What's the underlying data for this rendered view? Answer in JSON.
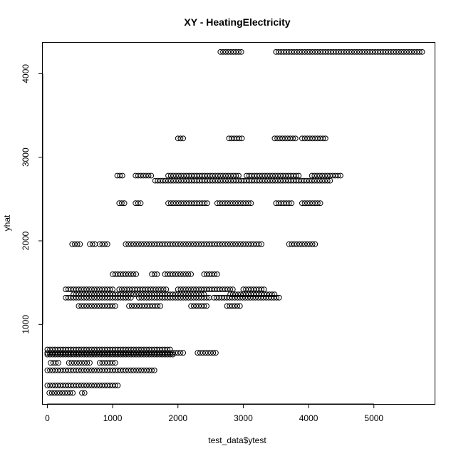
{
  "chart_data": {
    "type": "scatter",
    "title": "XY - HeatingElectricity",
    "xlabel": "test_data$ytest",
    "ylabel": "yhat",
    "xlim": [
      -70,
      5930
    ],
    "ylim": [
      48,
      4370
    ],
    "x_ticks": [
      0,
      1000,
      2000,
      3000,
      4000,
      5000
    ],
    "x_tick_labels": [
      "0",
      "1000",
      "2000",
      "3000",
      "4000",
      "5000"
    ],
    "y_ticks": [
      1000,
      2000,
      3000,
      4000
    ],
    "y_tick_labels": [
      "1000",
      "2000",
      "3000",
      "4000"
    ],
    "marker": "open-circle",
    "grid": false,
    "legend": "none",
    "colors": {
      "points": "#000000",
      "background": "#ffffff"
    },
    "bands": [
      {
        "y": 4260,
        "segments": [
          [
            2650,
            3000
          ],
          [
            3500,
            5750
          ]
        ]
      },
      {
        "y": 3225,
        "segments": [
          [
            2000,
            2100
          ],
          [
            2780,
            2980
          ],
          [
            3480,
            3820
          ],
          [
            3900,
            4280
          ]
        ]
      },
      {
        "y": 2780,
        "segments": [
          [
            1070,
            1150
          ],
          [
            1350,
            1600
          ],
          [
            1850,
            2950
          ],
          [
            3050,
            3850
          ],
          [
            4050,
            4500
          ]
        ]
      },
      {
        "y": 2720,
        "segments": [
          [
            1650,
            4350
          ]
        ]
      },
      {
        "y": 2450,
        "segments": [
          [
            1100,
            1180
          ],
          [
            1350,
            1450
          ],
          [
            1850,
            2450
          ],
          [
            2600,
            3150
          ],
          [
            3500,
            3750
          ],
          [
            3900,
            4180
          ]
        ]
      },
      {
        "y": 1960,
        "segments": [
          [
            380,
            520
          ],
          [
            650,
            750
          ],
          [
            800,
            950
          ],
          [
            1200,
            3300
          ],
          [
            3700,
            4120
          ]
        ]
      },
      {
        "y": 1600,
        "segments": [
          [
            1000,
            1380
          ],
          [
            1600,
            1700
          ],
          [
            1800,
            2200
          ],
          [
            2400,
            2600
          ]
        ]
      },
      {
        "y": 1420,
        "segments": [
          [
            280,
            1000
          ],
          [
            1100,
            1850
          ],
          [
            2000,
            2850
          ],
          [
            3000,
            3350
          ]
        ]
      },
      {
        "y": 1360,
        "segments": [
          [
            400,
            1200
          ],
          [
            1200,
            2400
          ],
          [
            2800,
            3500
          ]
        ]
      },
      {
        "y": 1320,
        "segments": [
          [
            280,
            1300
          ],
          [
            1400,
            2500
          ],
          [
            2550,
            3550
          ]
        ]
      },
      {
        "y": 1220,
        "segments": [
          [
            480,
            1050
          ],
          [
            1250,
            1750
          ],
          [
            2200,
            2450
          ],
          [
            2750,
            2950
          ]
        ]
      },
      {
        "y": 700,
        "segments": [
          [
            0,
            1900
          ]
        ]
      },
      {
        "y": 660,
        "segments": [
          [
            0,
            2100
          ],
          [
            2300,
            2600
          ]
        ]
      },
      {
        "y": 640,
        "segments": [
          [
            0,
            1950
          ]
        ]
      },
      {
        "y": 540,
        "segments": [
          [
            50,
            200
          ],
          [
            330,
            650
          ],
          [
            800,
            1050
          ]
        ]
      },
      {
        "y": 450,
        "segments": [
          [
            0,
            1650
          ]
        ]
      },
      {
        "y": 270,
        "segments": [
          [
            0,
            1100
          ]
        ]
      },
      {
        "y": 180,
        "segments": [
          [
            30,
            400
          ],
          [
            530,
            600
          ]
        ]
      }
    ]
  }
}
